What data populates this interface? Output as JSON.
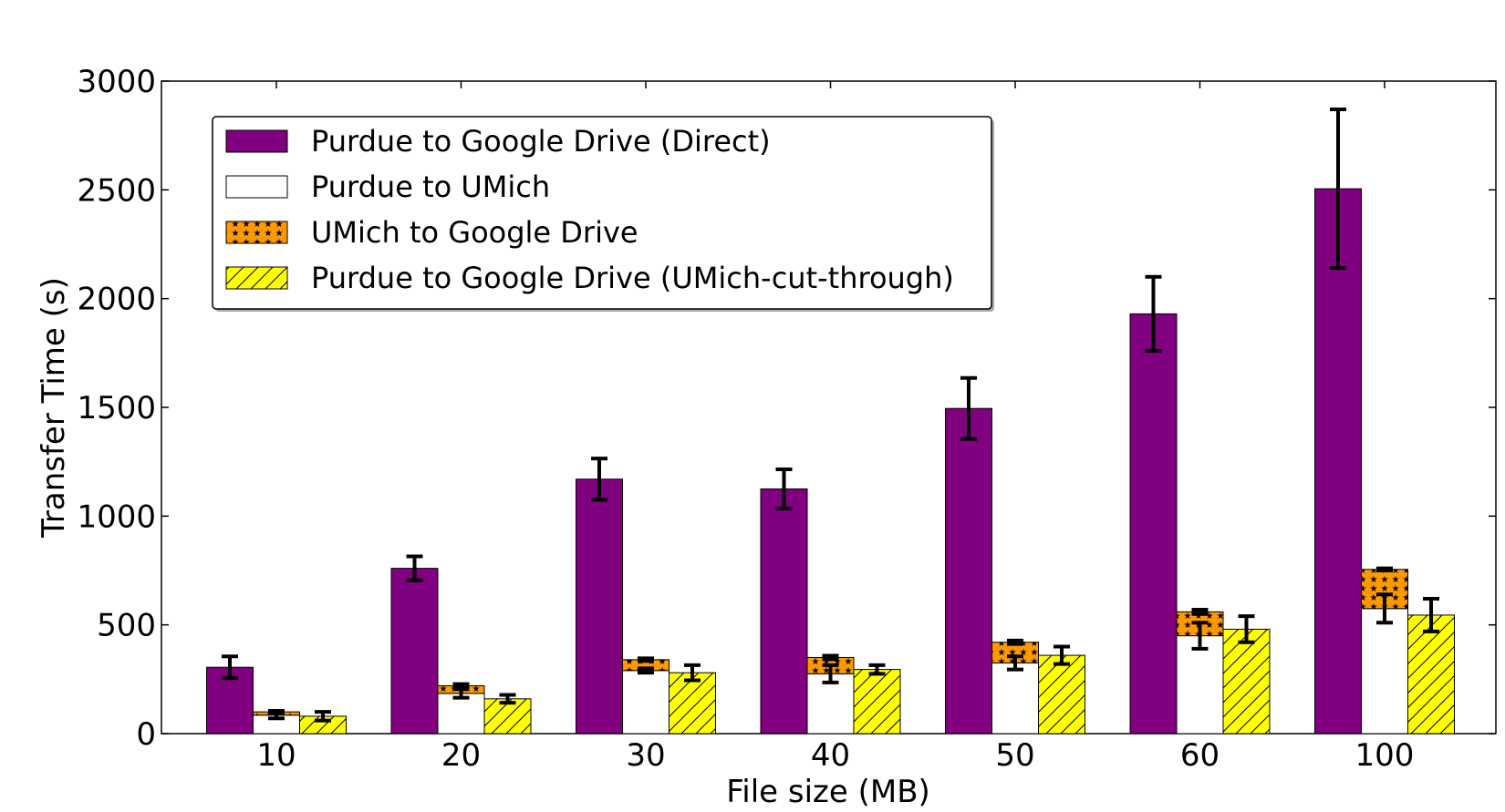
{
  "chart_data": {
    "type": "bar",
    "title": "",
    "xlabel": "File size (MB)",
    "ylabel": "Transfer Time (s)",
    "ylim": [
      0,
      3000
    ],
    "yticks": [
      0,
      500,
      1000,
      1500,
      2000,
      2500,
      3000
    ],
    "categories": [
      "10",
      "20",
      "30",
      "40",
      "50",
      "60",
      "100"
    ],
    "legend_position": "upper-left",
    "grid": false,
    "series": [
      {
        "name": "Purdue to Google Drive (Direct)",
        "color": "#800080",
        "pattern": "solid",
        "values": [
          305,
          760,
          1170,
          1125,
          1495,
          1930,
          2505
        ],
        "errors": [
          50,
          55,
          95,
          90,
          140,
          170,
          365
        ]
      },
      {
        "name": "Purdue to UMich",
        "color": "#ffffff",
        "pattern": "solid",
        "values": [
          85,
          185,
          290,
          275,
          325,
          450,
          575
        ],
        "errors": [
          15,
          20,
          10,
          40,
          30,
          60,
          65
        ]
      },
      {
        "name": "UMich to Google Drive",
        "color": "#ff9900",
        "pattern": "stars",
        "stacked_on": "Purdue to UMich",
        "values": [
          15,
          35,
          50,
          75,
          95,
          110,
          180
        ],
        "errors": [
          5,
          8,
          6,
          8,
          8,
          10,
          5
        ]
      },
      {
        "name": "Purdue to Google Drive (UMich-cut-through)",
        "color": "#ffff00",
        "pattern": "hatch",
        "values": [
          80,
          160,
          280,
          295,
          360,
          480,
          545
        ],
        "errors": [
          20,
          18,
          35,
          20,
          40,
          60,
          75
        ]
      }
    ]
  }
}
